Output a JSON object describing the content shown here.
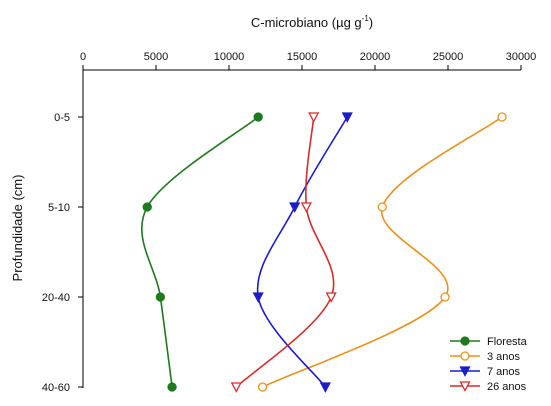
{
  "chart_data": {
    "type": "line",
    "orientation": "horizontal-profile",
    "title": "",
    "xlabel": "C-microbiano (µg g",
    "xlabel_superscript": "-1",
    "xlabel_suffix": ")",
    "ylabel": "Profundidade (cm)",
    "xlim": [
      0,
      30000
    ],
    "xticks": [
      0,
      5000,
      10000,
      15000,
      20000,
      25000,
      30000
    ],
    "x_axis_position": "top",
    "categories": [
      "0-5",
      "5-10",
      "20-40",
      "40-60"
    ],
    "grid": false,
    "legend_position": "bottom-right",
    "series": [
      {
        "name": "Floresta",
        "values": [
          12000,
          4400,
          5300,
          6100
        ],
        "color": "#1f7a1f",
        "marker": "circle-filled"
      },
      {
        "name": "3 anos",
        "values": [
          28700,
          20500,
          24800,
          12300
        ],
        "color": "#e8921e",
        "marker": "circle-open"
      },
      {
        "name": "7 anos",
        "values": [
          18100,
          14500,
          12000,
          16600
        ],
        "color": "#1c1cc8",
        "marker": "triangle-down-filled"
      },
      {
        "name": "26 anos",
        "values": [
          15800,
          15300,
          17000,
          10500
        ],
        "color": "#d42b2b",
        "marker": "triangle-down-open"
      }
    ]
  }
}
